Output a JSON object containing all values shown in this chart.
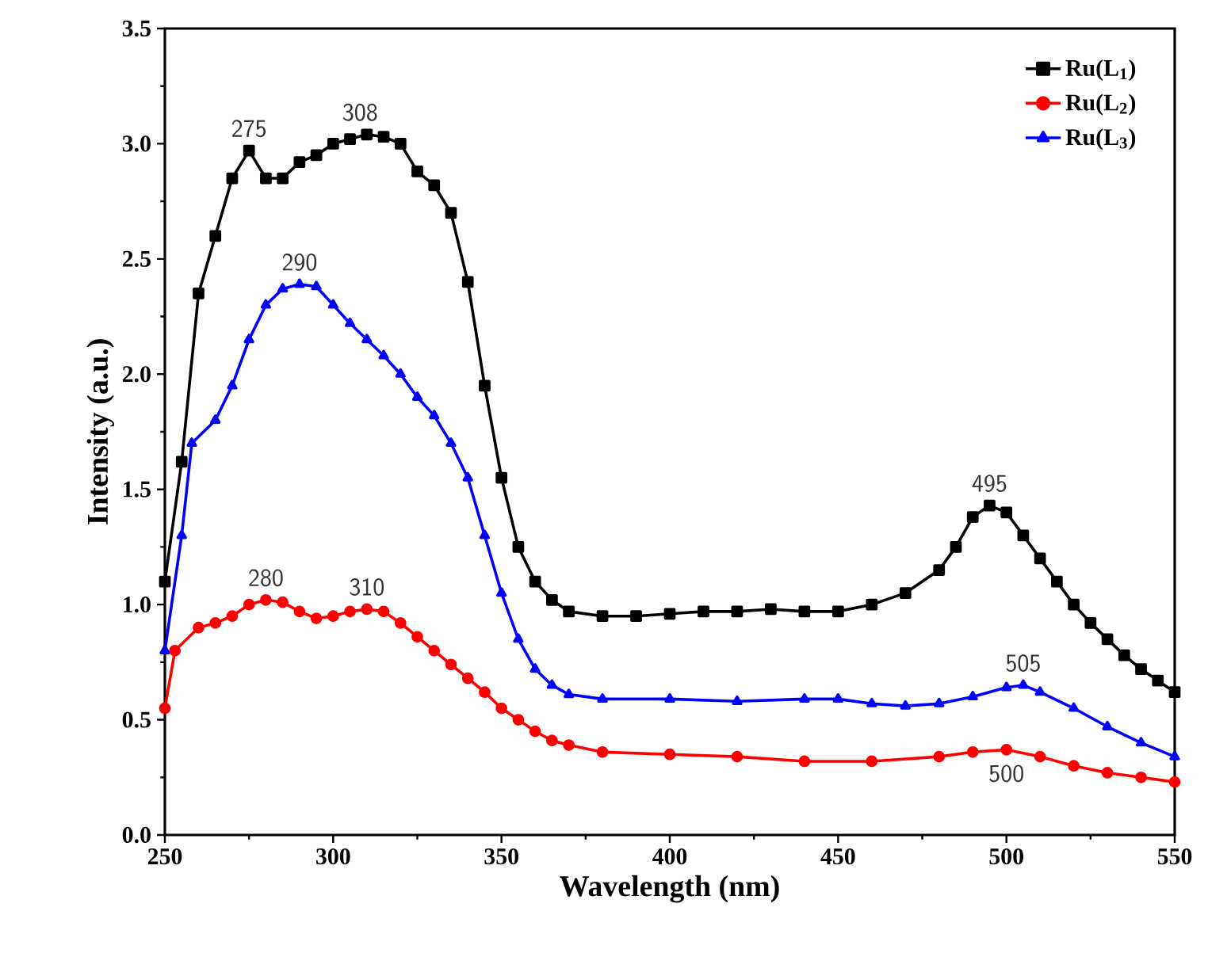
{
  "chart_data": {
    "type": "line",
    "xlabel": "Wavelength (nm)",
    "ylabel": "Intensity (a.u.)",
    "xlim": [
      250,
      550
    ],
    "ylim": [
      0,
      3.5
    ],
    "xticks": [
      250,
      300,
      350,
      400,
      450,
      500,
      550
    ],
    "yticks": [
      {
        "value": 0,
        "label": "0.0"
      },
      {
        "value": 0.5,
        "label": "0.5"
      },
      {
        "value": 1,
        "label": "1.0"
      },
      {
        "value": 1.5,
        "label": "1.5"
      },
      {
        "value": 2,
        "label": "2.0"
      },
      {
        "value": 2.5,
        "label": "2.5"
      },
      {
        "value": 3,
        "label": "3.0"
      },
      {
        "value": 3.5,
        "label": "3.5"
      }
    ],
    "legend": "top right",
    "line_style": "solid",
    "grid": false,
    "series": [
      {
        "name": "Ru(L$_{1}$)",
        "color": "#000000",
        "marker": "square",
        "x": [
          250,
          255,
          260,
          265,
          270,
          275,
          280,
          285,
          290,
          295,
          300,
          305,
          310,
          315,
          320,
          325,
          330,
          335,
          340,
          345,
          350,
          355,
          360,
          365,
          370,
          380,
          390,
          400,
          410,
          420,
          430,
          440,
          450,
          460,
          470,
          480,
          485,
          490,
          495,
          500,
          505,
          510,
          515,
          520,
          525,
          530,
          535,
          540,
          545,
          550
        ],
        "values": [
          1.1,
          1.62,
          2.35,
          2.6,
          2.85,
          2.97,
          2.85,
          2.85,
          2.92,
          2.95,
          3.0,
          3.02,
          3.04,
          3.03,
          3.0,
          2.88,
          2.82,
          2.7,
          2.4,
          1.95,
          1.55,
          1.25,
          1.1,
          1.02,
          0.97,
          0.95,
          0.95,
          0.96,
          0.97,
          0.97,
          0.98,
          0.97,
          0.97,
          1.0,
          1.05,
          1.15,
          1.25,
          1.38,
          1.43,
          1.4,
          1.3,
          1.2,
          1.1,
          1.0,
          0.92,
          0.85,
          0.78,
          0.72,
          0.67,
          0.62
        ]
      },
      {
        "name": "Ru(L$_{2}$)",
        "color": "#ff0000",
        "marker": "circle",
        "x": [
          250,
          253,
          260,
          265,
          270,
          275,
          280,
          285,
          290,
          295,
          300,
          305,
          310,
          315,
          320,
          325,
          330,
          335,
          340,
          345,
          350,
          355,
          360,
          365,
          370,
          380,
          400,
          420,
          440,
          460,
          480,
          490,
          500,
          510,
          520,
          530,
          540,
          550
        ],
        "values": [
          0.55,
          0.8,
          0.9,
          0.92,
          0.95,
          1.0,
          1.02,
          1.01,
          0.97,
          0.94,
          0.95,
          0.97,
          0.98,
          0.97,
          0.92,
          0.86,
          0.8,
          0.74,
          0.68,
          0.62,
          0.55,
          0.5,
          0.45,
          0.41,
          0.39,
          0.36,
          0.35,
          0.34,
          0.32,
          0.32,
          0.34,
          0.36,
          0.37,
          0.34,
          0.3,
          0.27,
          0.25,
          0.23
        ]
      },
      {
        "name": "Ru(L$_{3}$)",
        "color": "#0000ff",
        "marker": "triangle",
        "x": [
          250,
          255,
          258,
          265,
          270,
          275,
          280,
          285,
          290,
          295,
          300,
          305,
          310,
          315,
          320,
          325,
          330,
          335,
          340,
          345,
          350,
          355,
          360,
          365,
          370,
          380,
          400,
          420,
          440,
          450,
          460,
          470,
          480,
          490,
          500,
          505,
          510,
          520,
          530,
          540,
          550
        ],
        "values": [
          0.8,
          1.3,
          1.7,
          1.8,
          1.95,
          2.15,
          2.3,
          2.37,
          2.39,
          2.38,
          2.3,
          2.22,
          2.15,
          2.08,
          2.0,
          1.9,
          1.82,
          1.7,
          1.55,
          1.3,
          1.05,
          0.85,
          0.72,
          0.65,
          0.61,
          0.59,
          0.59,
          0.58,
          0.59,
          0.59,
          0.57,
          0.56,
          0.57,
          0.6,
          0.64,
          0.65,
          0.62,
          0.55,
          0.47,
          0.4,
          0.34
        ]
      }
    ],
    "annotations": [
      {
        "text": "275",
        "x": 275,
        "y": 2.97
      },
      {
        "text": "308",
        "x": 308,
        "y": 3.04
      },
      {
        "text": "290",
        "x": 290,
        "y": 2.39
      },
      {
        "text": "280",
        "x": 280,
        "y": 1.02
      },
      {
        "text": "310",
        "x": 310,
        "y": 0.98
      },
      {
        "text": "495",
        "x": 495,
        "y": 1.43
      },
      {
        "text": "505",
        "x": 505,
        "y": 0.65
      },
      {
        "text": "500",
        "x": 500,
        "y": 0.37
      }
    ]
  }
}
